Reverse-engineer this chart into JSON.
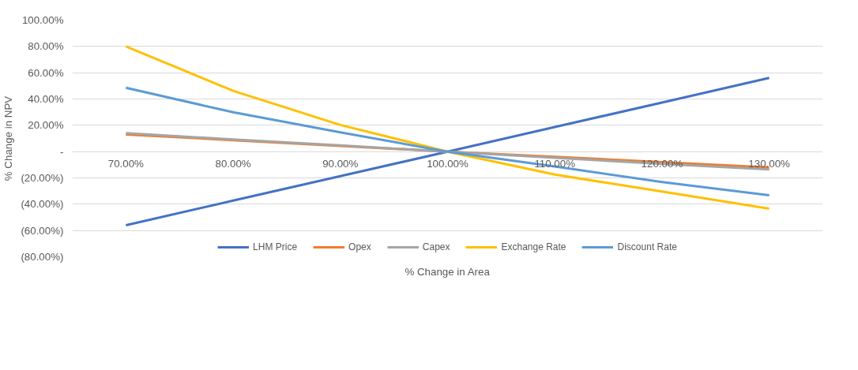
{
  "chart_data": {
    "type": "line",
    "xlabel": "% Change in Area",
    "ylabel": "% Change in NPV",
    "categories": [
      "70.00%",
      "80.00%",
      "90.00%",
      "100.00%",
      "110.00%",
      "120.00%",
      "130.00%"
    ],
    "series": [
      {
        "name": "LHM Price",
        "color": "#4472c4",
        "values": [
          -56,
          -37.3,
          -18.7,
          0,
          18.7,
          37.3,
          56
        ]
      },
      {
        "name": "Opex",
        "color": "#ed7d31",
        "values": [
          13,
          8.7,
          4.3,
          0,
          -4,
          -8,
          -12
        ]
      },
      {
        "name": "Capex",
        "color": "#a5a5a5",
        "values": [
          14,
          9.3,
          4.7,
          0,
          -4.7,
          -9.3,
          -13.5
        ]
      },
      {
        "name": "Exchange Rate",
        "color": "#ffc000",
        "values": [
          80,
          46.2,
          20.3,
          0,
          -17.5,
          -30.4,
          -43.4
        ]
      },
      {
        "name": "Discount Rate",
        "color": "#5b9bd5",
        "values": [
          48.5,
          29.9,
          14.6,
          0,
          -11.3,
          -23.1,
          -33.2
        ]
      }
    ],
    "ylim": [
      -80,
      100
    ],
    "yticks": [
      {
        "value": -80,
        "label": "(80.00%)"
      },
      {
        "value": -60,
        "label": "(60.00%)"
      },
      {
        "value": -40,
        "label": "(40.00%)"
      },
      {
        "value": -20,
        "label": "(20.00%)"
      },
      {
        "value": 0,
        "label": "-"
      },
      {
        "value": 20,
        "label": "20.00%"
      },
      {
        "value": 40,
        "label": "40.00%"
      },
      {
        "value": 60,
        "label": "60.00%"
      },
      {
        "value": 80,
        "label": "80.00%"
      },
      {
        "value": 100,
        "label": "100.00%"
      }
    ],
    "grid": "y",
    "legend": "bottom",
    "marker": "none",
    "line_style": "solid"
  }
}
